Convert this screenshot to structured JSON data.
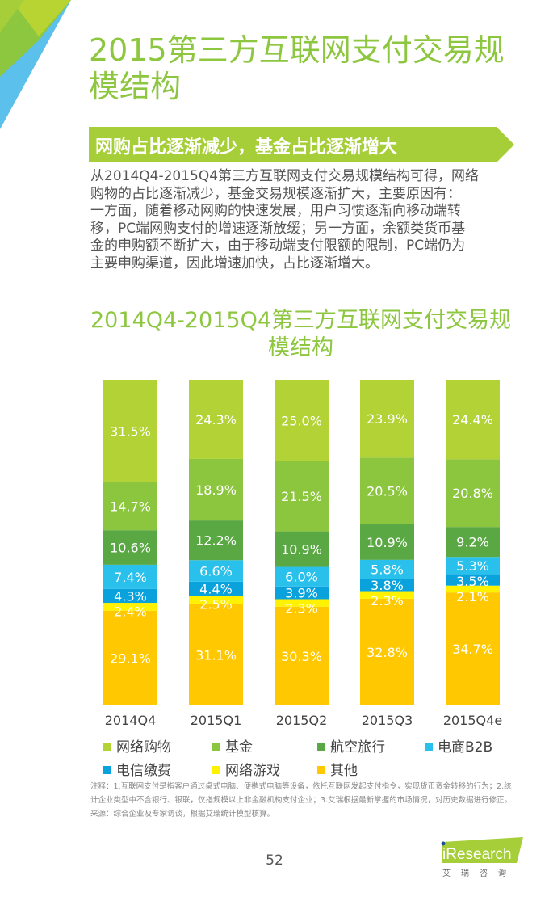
{
  "title": "2015第三方互联网支付交易规模结构",
  "banner": "网购占比逐渐减少，基金占比逐渐增大",
  "body_lines": [
    "从2014Q4-2015Q4第三方互联网支付交易规模结构可得，网络",
    "购物的占比逐渐减少，基金交易规模逐渐扩大，主要原因有：",
    "一方面，随着移动网购的快速发展，用户习惯逐渐向移动端转",
    "移，PC端网购支付的增速逐渐放缓；另一方面，余额类货币基",
    "金的申购额不断扩大，由于移动端支付限额的限制，PC端仍为",
    "主要申购渠道，因此增速加快，占比逐渐增大。"
  ],
  "chart_data": {
    "type": "bar",
    "stacked": true,
    "normalized_percent": true,
    "title": "2014Q4-2015Q4第三方互联网支付交易规模结构",
    "categories": [
      "2014Q4",
      "2015Q1",
      "2015Q2",
      "2015Q3",
      "2015Q4e"
    ],
    "ylim": [
      0,
      100
    ],
    "grid": false,
    "legend_position": "bottom",
    "series": [
      {
        "name": "网络购物",
        "color": "#b2d235",
        "values": [
          31.5,
          24.3,
          25.0,
          23.9,
          24.4
        ]
      },
      {
        "name": "基金",
        "color": "#8cc63f",
        "values": [
          14.7,
          18.9,
          21.5,
          20.5,
          20.8
        ]
      },
      {
        "name": "航空旅行",
        "color": "#5aa844",
        "values": [
          10.6,
          12.2,
          10.9,
          10.9,
          9.2
        ]
      },
      {
        "name": "电商B2B",
        "color": "#29c0ec",
        "values": [
          7.4,
          6.6,
          6.0,
          5.8,
          5.3
        ]
      },
      {
        "name": "电信缴费",
        "color": "#0aa2dc",
        "values": [
          4.3,
          4.4,
          3.9,
          3.8,
          3.5
        ]
      },
      {
        "name": "网络游戏",
        "color": "#fff200",
        "values": [
          2.4,
          2.5,
          2.3,
          2.3,
          2.1
        ]
      },
      {
        "name": "其他",
        "color": "#ffc800",
        "values": [
          29.1,
          31.1,
          30.3,
          32.8,
          34.7
        ]
      }
    ]
  },
  "notes": [
    "注释：1.互联网支付是指客户通过桌式电脑、便携式电脑等设备，依托互联网发起支付指令，实现货币资金转移的行为；2.统",
    "计企业类型中不含银行、银联，仅指规模以上非金融机构支付企业；3.艾瑞根据最新掌握的市场情况，对历史数据进行修正。",
    "来源：综合企业及专家访谈，根据艾瑞统计模型核算。"
  ],
  "page_number": "52",
  "logo": {
    "text": "iResearch",
    "cn": "艾瑞咨询"
  },
  "colors": {
    "accent": "#8dc63f",
    "banner": "#a6ce39",
    "deco_blue": "#5bc0eb"
  }
}
